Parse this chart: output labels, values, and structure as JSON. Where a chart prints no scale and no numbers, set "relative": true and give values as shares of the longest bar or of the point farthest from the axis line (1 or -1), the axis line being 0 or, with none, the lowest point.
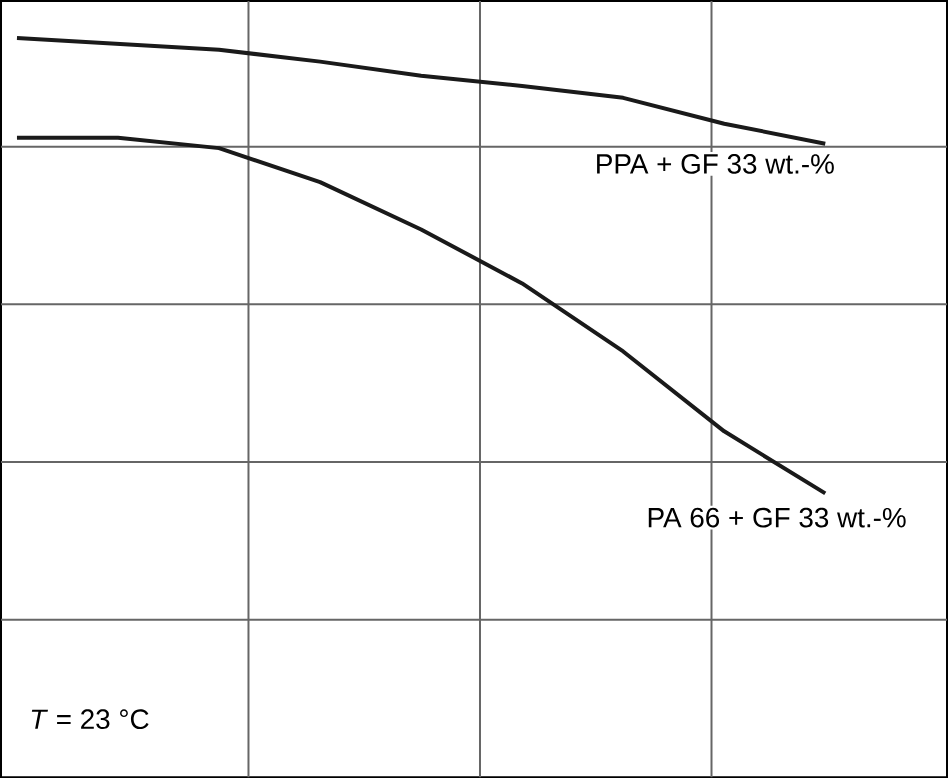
{
  "chart_data": {
    "type": "line",
    "relative": true,
    "grid": true,
    "marker": "none",
    "line_style": "solid",
    "categories": [
      null,
      null,
      null,
      null,
      null,
      null,
      null,
      null,
      null
    ],
    "series": [
      {
        "name": "PPA + GF 33 wt.-%",
        "color": "#1a1a1a",
        "values": [
          1,
          0.992,
          0.984,
          0.968,
          0.949,
          0.935,
          0.919,
          0.884,
          0.857
        ]
      },
      {
        "name": "PA 66 + GF 33 wt.-%",
        "color": "#1a1a1a",
        "values": [
          0.865,
          0.865,
          0.851,
          0.805,
          0.741,
          0.668,
          0.576,
          0.468,
          0.384
        ]
      }
    ],
    "annotations": [
      "*T* = 23 °C"
    ]
  }
}
